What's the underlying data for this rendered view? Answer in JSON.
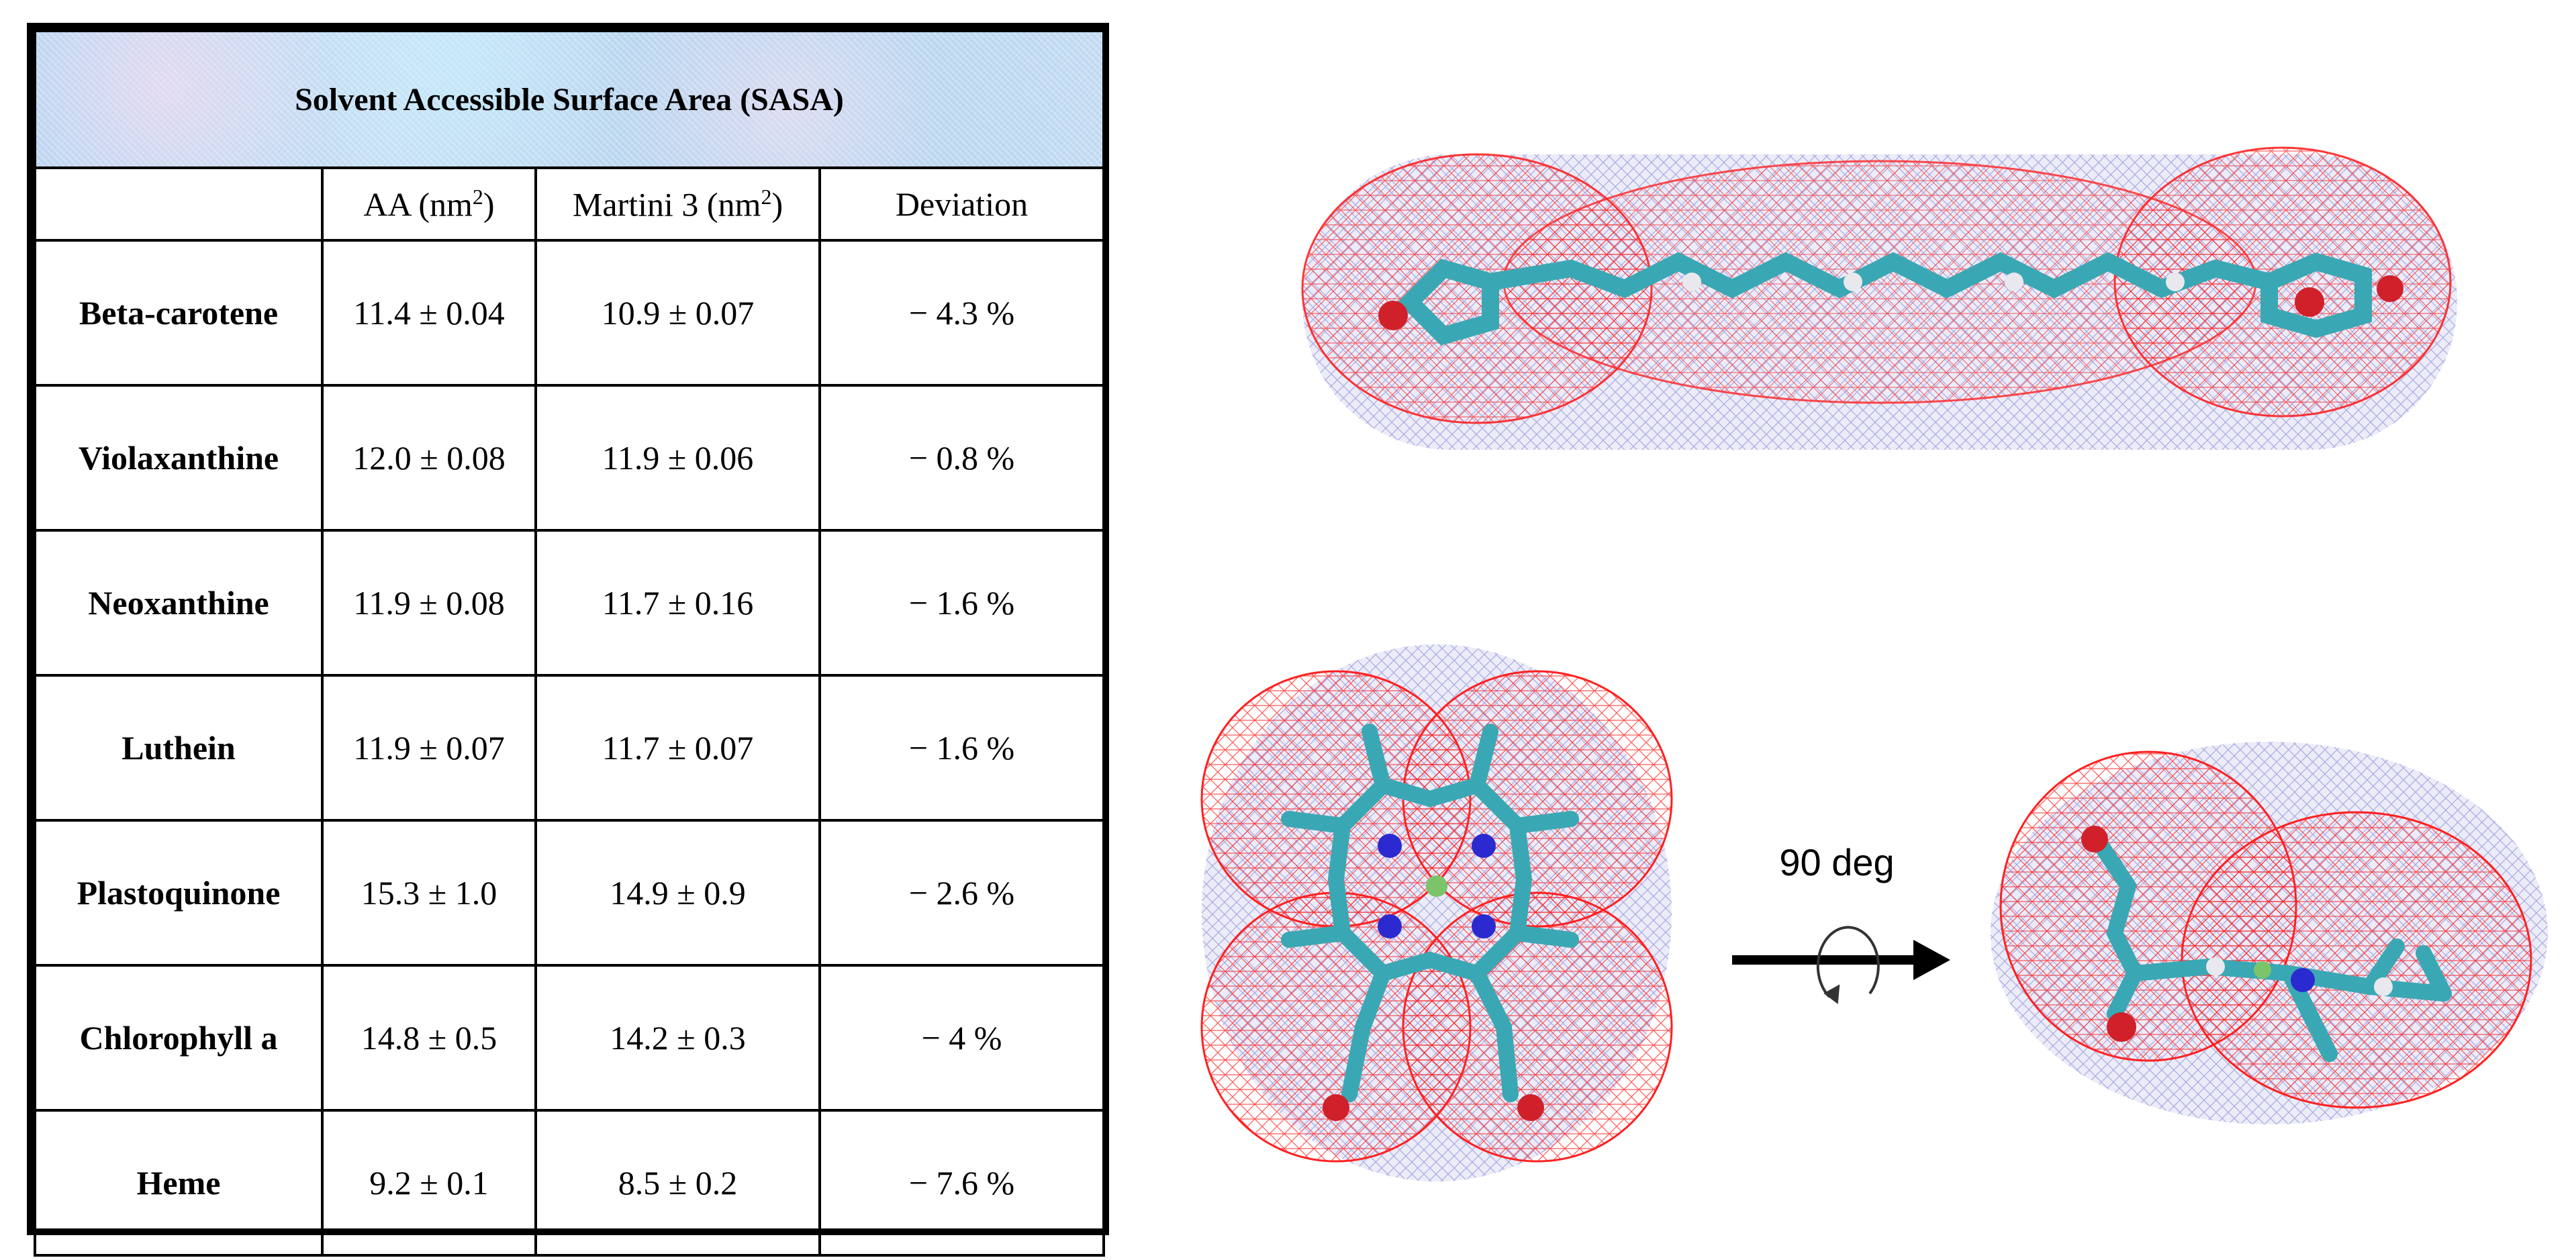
{
  "table": {
    "title": "Solvent Accessible Surface Area (SASA)",
    "headers": {
      "col_name": "",
      "col_aa": "AA (nm",
      "col_aa_sup": "2",
      "col_aa_end": ")",
      "col_martini": "Martini 3 (nm",
      "col_martini_sup": "2",
      "col_martini_end": ")",
      "col_dev": "Deviation"
    },
    "rows": [
      {
        "name": "Beta-carotene",
        "aa": "11.4 ± 0.04",
        "martini": "10.9 ± 0.07",
        "dev": "− 4.3 %"
      },
      {
        "name": "Violaxanthine",
        "aa": "12.0 ± 0.08",
        "martini": "11.9 ± 0.06",
        "dev": "− 0.8 %"
      },
      {
        "name": "Neoxanthine",
        "aa": "11.9 ± 0.08",
        "martini": "11.7 ± 0.16",
        "dev": "− 1.6 %"
      },
      {
        "name": "Luthein",
        "aa": "11.9 ± 0.07",
        "martini": "11.7 ± 0.07",
        "dev": "− 1.6 %"
      },
      {
        "name": "Plastoquinone",
        "aa": "15.3 ± 1.0",
        "martini": "14.9 ± 0.9",
        "dev": "− 2.6 %"
      },
      {
        "name": "Chlorophyll a",
        "aa": "14.8 ± 0.5",
        "martini": "14.2 ± 0.3",
        "dev": "− 4 %"
      },
      {
        "name": "Heme",
        "aa": "9.2 ± 0.1",
        "martini": "8.5 ± 0.2",
        "dev": "− 7.6 %"
      }
    ]
  },
  "figure": {
    "rotation_label": "90 deg",
    "colors": {
      "mesh_red": "#ff2020",
      "mesh_blue": "#8c8fd8",
      "carbon": "#3aa8b4",
      "oxygen": "#d0202a",
      "nitrogen": "#2a2ad0",
      "hydrogen": "#e8e8ee",
      "metal": "#7cc46a"
    },
    "icons": [
      "rotate-arrow-icon",
      "right-arrow-icon"
    ]
  }
}
